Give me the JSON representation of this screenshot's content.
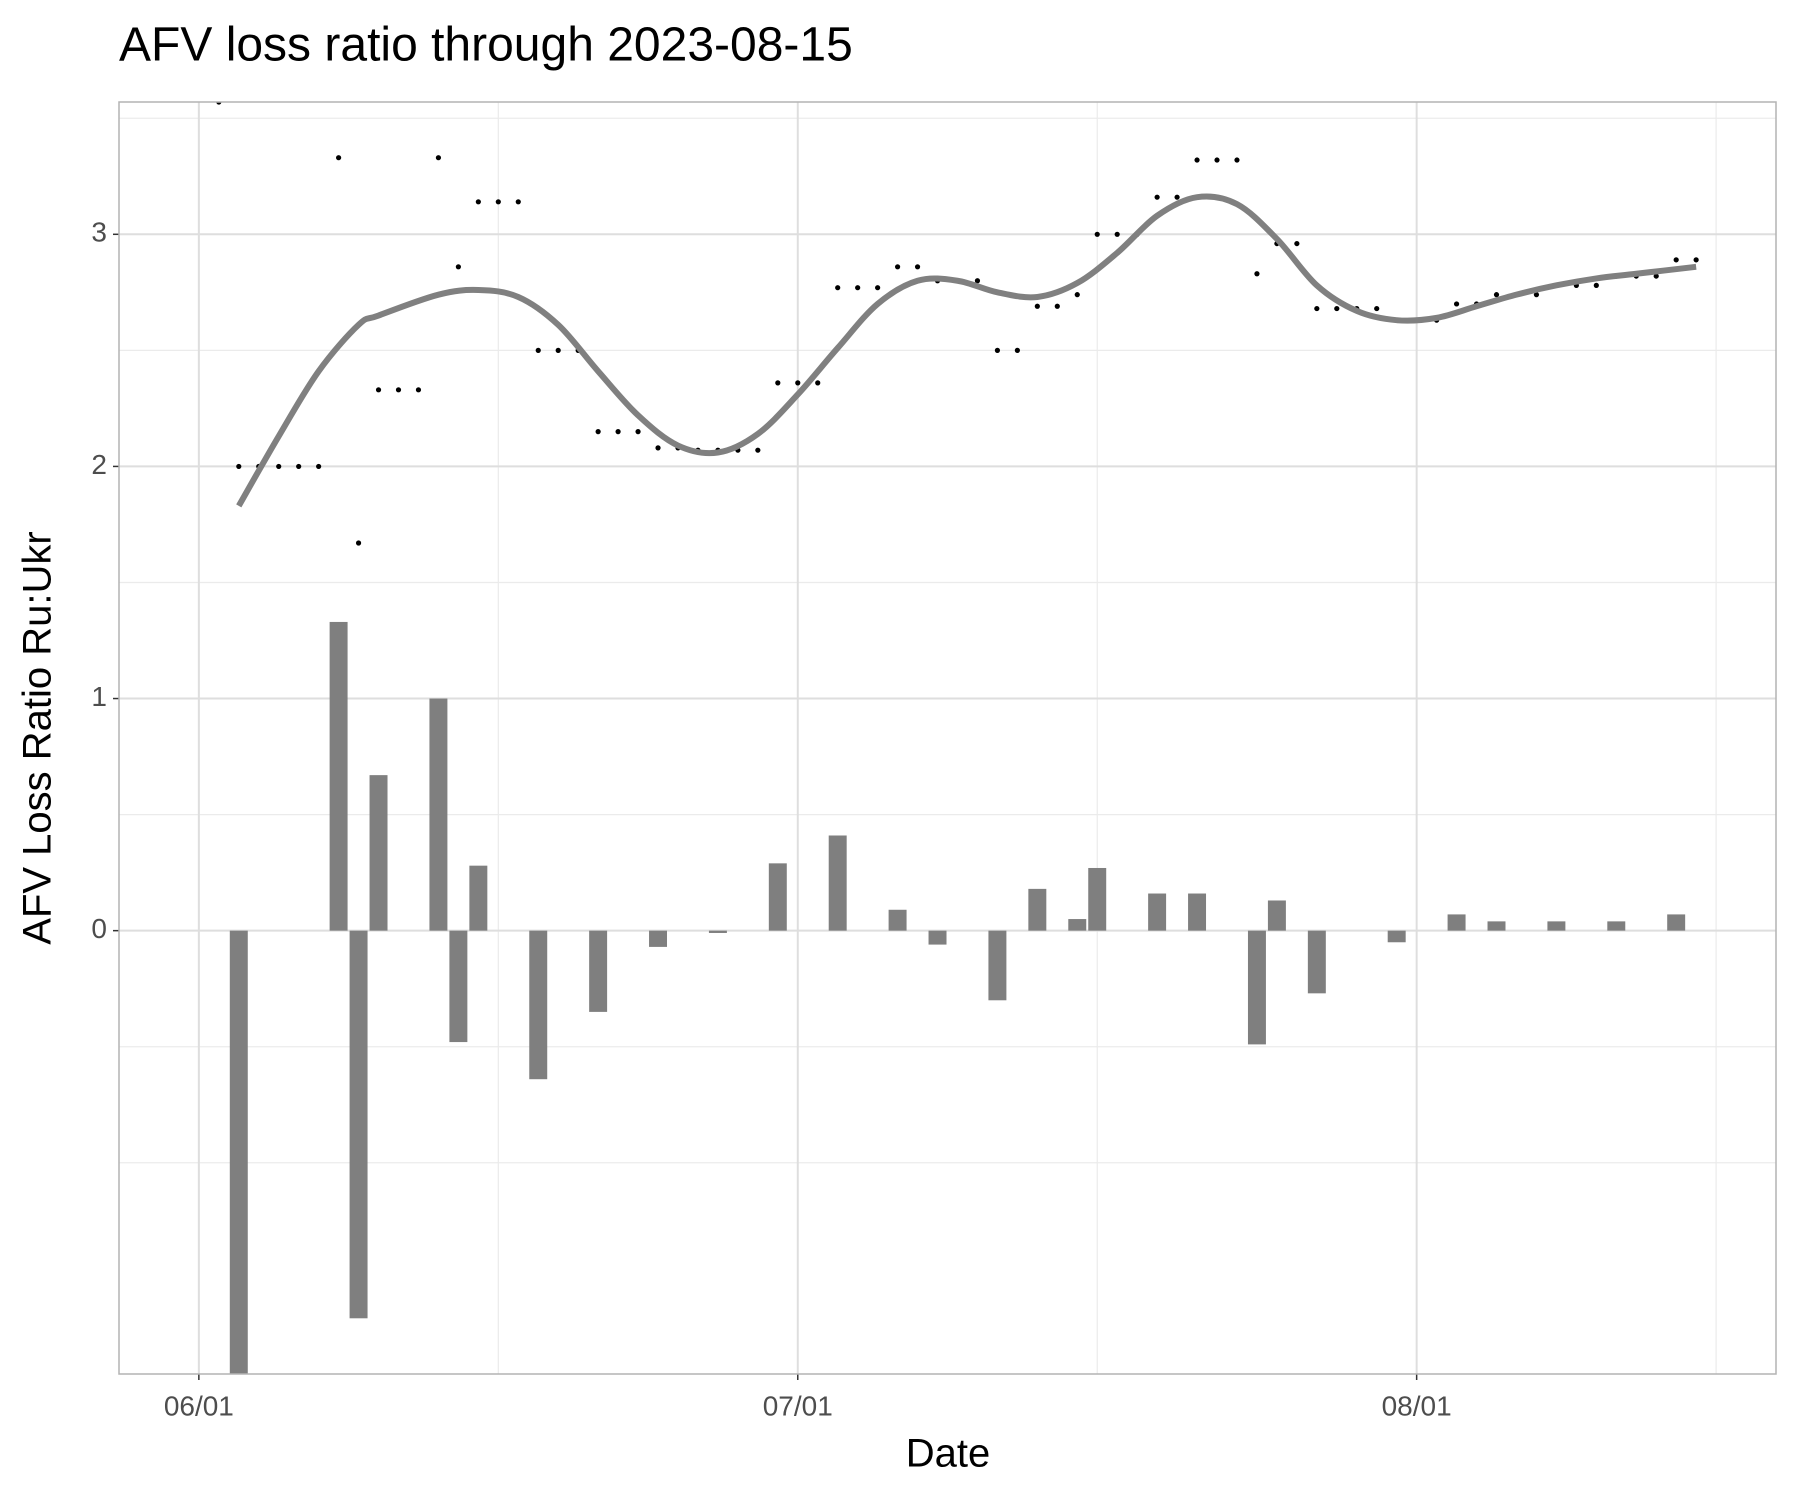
{
  "chart_data": {
    "type": "combo",
    "title": "AFV loss ratio through 2023-08-15",
    "x_label": "Date",
    "y_label": "AFV Loss Ratio Ru:Ukr",
    "xlim": [
      "05/28",
      "08/19"
    ],
    "xticks": [
      "06/01",
      "07/01",
      "08/01"
    ],
    "minor_xticks": [
      "06/16",
      "07/16",
      "08/16"
    ],
    "ylim": [
      -1.91,
      3.57
    ],
    "yticks": [
      0,
      1,
      2,
      3
    ],
    "minor_yticks": [
      -1,
      -0.5,
      0.5,
      1.5,
      2.5,
      3.5
    ],
    "grid": true,
    "series": [
      {
        "type": "bar",
        "color": "#7f7f7f",
        "x": [
          "06/03",
          "06/08",
          "06/09",
          "06/10",
          "06/13",
          "06/14",
          "06/15",
          "06/18",
          "06/21",
          "06/24",
          "06/27",
          "06/30",
          "07/03",
          "07/06",
          "07/08",
          "07/11",
          "07/13",
          "07/15",
          "07/16",
          "07/19",
          "07/21",
          "07/24",
          "07/25",
          "07/27",
          "07/31",
          "08/03",
          "08/05",
          "08/08",
          "08/11",
          "08/14"
        ],
        "values": [
          -2,
          1.33,
          -1.67,
          0.67,
          1.0,
          -0.48,
          0.28,
          -0.64,
          -0.35,
          -0.07,
          -0.01,
          0.29,
          0.41,
          0.09,
          -0.06,
          -0.3,
          0.18,
          0.05,
          0.27,
          0.16,
          0.16,
          -0.49,
          0.13,
          -0.27,
          -0.05,
          0.07,
          0.04,
          0.04,
          0.04,
          0.07
        ]
      },
      {
        "type": "scatter",
        "color": "#000000",
        "x": [
          "06/02",
          "06/03",
          "06/04",
          "06/05",
          "06/06",
          "06/07",
          "06/08",
          "06/09",
          "06/10",
          "06/11",
          "06/12",
          "06/13",
          "06/14",
          "06/15",
          "06/16",
          "06/17",
          "06/18",
          "06/19",
          "06/20",
          "06/21",
          "06/22",
          "06/23",
          "06/24",
          "06/25",
          "06/26",
          "06/27",
          "06/28",
          "06/29",
          "06/30",
          "07/01",
          "07/02",
          "07/03",
          "07/04",
          "07/05",
          "07/06",
          "07/07",
          "07/08",
          "07/09",
          "07/10",
          "07/11",
          "07/12",
          "07/13",
          "07/14",
          "07/15",
          "07/16",
          "07/17",
          "07/18",
          "07/19",
          "07/20",
          "07/21",
          "07/22",
          "07/23",
          "07/24",
          "07/25",
          "07/26",
          "07/27",
          "07/28",
          "07/29",
          "07/30",
          "07/31",
          "08/01",
          "08/02",
          "08/03",
          "08/04",
          "08/05",
          "08/06",
          "08/07",
          "08/08",
          "08/09",
          "08/10",
          "08/11",
          "08/12",
          "08/13",
          "08/14",
          "08/15"
        ],
        "values": [
          3.57,
          2.0,
          2.0,
          2.0,
          2.0,
          2.0,
          3.33,
          1.67,
          2.33,
          2.33,
          2.33,
          3.33,
          2.86,
          3.14,
          3.14,
          3.14,
          2.5,
          2.5,
          2.5,
          2.15,
          2.15,
          2.15,
          2.08,
          2.08,
          2.07,
          2.07,
          2.07,
          2.07,
          2.36,
          2.36,
          2.36,
          2.77,
          2.77,
          2.77,
          2.86,
          2.86,
          2.8,
          2.8,
          2.8,
          2.5,
          2.5,
          2.69,
          2.69,
          2.74,
          3.0,
          3.0,
          3.0,
          3.16,
          3.16,
          3.32,
          3.32,
          3.32,
          2.83,
          2.96,
          2.96,
          2.68,
          2.68,
          2.68,
          2.68,
          2.63,
          2.63,
          2.63,
          2.7,
          2.7,
          2.74,
          2.74,
          2.74,
          2.78,
          2.78,
          2.78,
          2.82,
          2.82,
          2.82,
          2.89,
          2.89
        ]
      },
      {
        "type": "line",
        "color": "#808080",
        "x": [
          "06/03",
          "06/05",
          "06/07",
          "06/09",
          "06/10",
          "06/13",
          "06/15",
          "06/17",
          "06/19",
          "06/21",
          "06/23",
          "06/25",
          "06/27",
          "06/29",
          "07/01",
          "07/03",
          "07/05",
          "07/07",
          "07/09",
          "07/11",
          "07/13",
          "07/15",
          "07/17",
          "07/19",
          "07/21",
          "07/23",
          "07/25",
          "07/27",
          "07/29",
          "07/31",
          "08/02",
          "08/04",
          "08/06",
          "08/08",
          "08/10",
          "08/12",
          "08/15"
        ],
        "values": [
          1.83,
          2.13,
          2.41,
          2.61,
          2.65,
          2.74,
          2.76,
          2.73,
          2.61,
          2.41,
          2.22,
          2.09,
          2.06,
          2.14,
          2.31,
          2.51,
          2.7,
          2.8,
          2.8,
          2.75,
          2.73,
          2.79,
          2.92,
          3.08,
          3.16,
          3.13,
          2.98,
          2.78,
          2.67,
          2.63,
          2.64,
          2.69,
          2.74,
          2.78,
          2.81,
          2.83,
          2.86
        ]
      }
    ]
  }
}
